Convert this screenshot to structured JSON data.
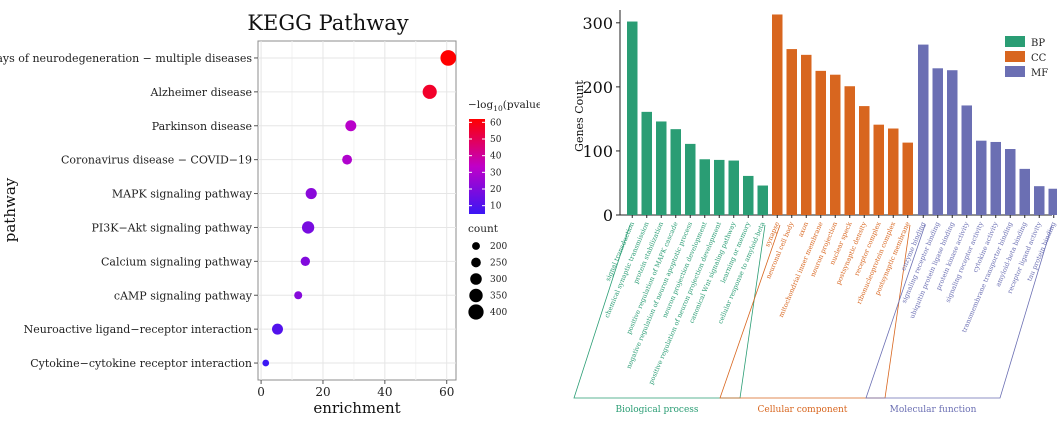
{
  "chart_data": [
    {
      "type": "scatter",
      "title": "KEGG Pathway",
      "xlabel": "enrichment",
      "ylabel": "pathway",
      "xlim": [
        -1,
        63
      ],
      "x_ticks": [
        0,
        20,
        40,
        60
      ],
      "grid": true,
      "categories": [
        "Pathways of neurodegeneration − multiple diseases",
        "Alzheimer disease",
        "Parkinson disease",
        "Coronavirus disease − COVID−19",
        "MAPK signaling pathway",
        "PI3K−Akt signaling pathway",
        "Calcium signaling pathway",
        "cAMP signaling pathway",
        "Neuroactive ligand−receptor interaction",
        "Cytokine−cytokine receptor interaction"
      ],
      "points": [
        {
          "enrichment": 60.5,
          "neg_log10_pvalue": 62,
          "count": 410
        },
        {
          "enrichment": 54.5,
          "neg_log10_pvalue": 56,
          "count": 370
        },
        {
          "enrichment": 29.0,
          "neg_log10_pvalue": 32,
          "count": 285
        },
        {
          "enrichment": 27.8,
          "neg_log10_pvalue": 30,
          "count": 255
        },
        {
          "enrichment": 16.2,
          "neg_log10_pvalue": 22,
          "count": 290
        },
        {
          "enrichment": 15.2,
          "neg_log10_pvalue": 18,
          "count": 320
        },
        {
          "enrichment": 14.3,
          "neg_log10_pvalue": 20,
          "count": 240
        },
        {
          "enrichment": 12.0,
          "neg_log10_pvalue": 21,
          "count": 205
        },
        {
          "enrichment": 5.3,
          "neg_log10_pvalue": 10,
          "count": 285
        },
        {
          "enrichment": 1.5,
          "neg_log10_pvalue": 5,
          "count": 170
        }
      ],
      "color_legend": {
        "title_prefix": "−log",
        "title_sub": "10",
        "title_suffix": "(pvalue)",
        "ticks": [
          10,
          20,
          30,
          40,
          50,
          60
        ],
        "range": [
          5,
          62
        ],
        "color_low": "#3b16f4",
        "color_mid": "#c000c8",
        "color_high": "#ff0000"
      },
      "size_legend": {
        "title": "count",
        "values": [
          200,
          250,
          300,
          350,
          400
        ]
      }
    },
    {
      "type": "bar",
      "ylabel": "Genes Count",
      "ylim": [
        0,
        320
      ],
      "y_ticks": [
        0,
        100,
        200,
        300
      ],
      "legend_position": "top-right",
      "series": [
        {
          "name": "BP",
          "color": "#2a9d74",
          "group_label": "Biological process",
          "categories": [
            "signal transduction",
            "chemical synaptic transmission",
            "protein stabilization",
            "positive regulation of MAPK cascade",
            "negative regulation of neuron apoptotic process",
            "neuron projection development",
            "positive regulation of neuron projection development",
            "canonical Wnt signaling pathway",
            "learning or memory",
            "cellular response to amyloid-beta"
          ],
          "values": [
            302,
            161,
            146,
            134,
            111,
            87,
            86,
            85,
            61,
            46
          ]
        },
        {
          "name": "CC",
          "color": "#d8661f",
          "group_label": "Cellular component",
          "categories": [
            "synapse",
            "neuronal cell body",
            "axon",
            "mitochondrial inner membrane",
            "neuron projection",
            "nuclear speck",
            "postsynaptic density",
            "receptor complex",
            "ribonucleoprotein complex",
            "postsynaptic membrane"
          ],
          "values": [
            313,
            259,
            250,
            225,
            219,
            201,
            170,
            141,
            135,
            113
          ]
        },
        {
          "name": "MF",
          "color": "#6b6fb3",
          "group_label": "Molecular function",
          "categories": [
            "enzyme binding",
            "signaling receptor binding",
            "ubiquitin protein ligase binding",
            "protein kinase activity",
            "signaling receptor activity",
            "cytokine activity",
            "transmembrane transporter binding",
            "amyloid-beta binding",
            "receptor ligand activity",
            "tau protein binding"
          ],
          "values": [
            266,
            229,
            226,
            171,
            116,
            114,
            103,
            72,
            45,
            41
          ]
        }
      ]
    }
  ]
}
